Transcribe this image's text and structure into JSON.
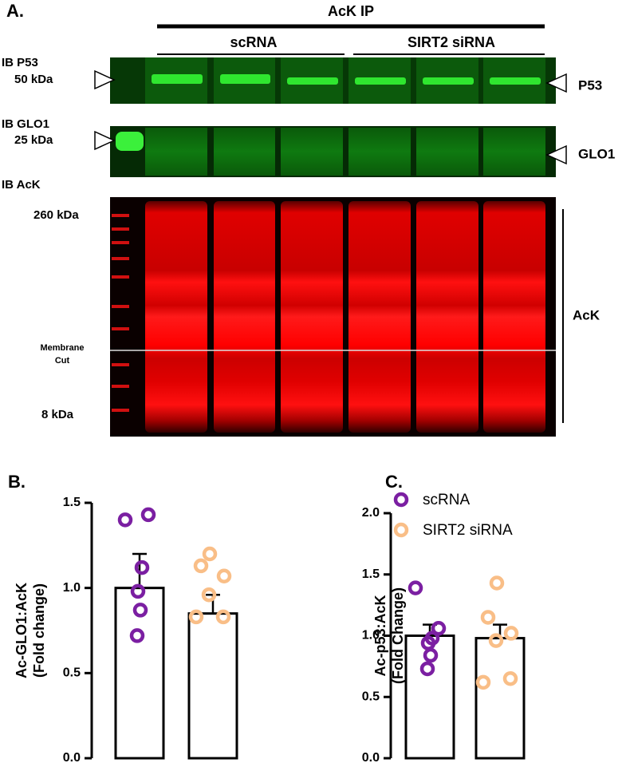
{
  "blot": {
    "panel_label": "A.",
    "ip_label": "AcK IP",
    "group_labels": [
      "scRNA",
      "SIRT2 siRNA"
    ],
    "p53": {
      "ib_label": "IB P53",
      "marker": "50 kDa",
      "band_label": "P53"
    },
    "glo1": {
      "ib_label": "IB GLO1",
      "marker": "25 kDa",
      "band_label": "GLO1"
    },
    "ack": {
      "ib_label": "IB AcK",
      "marker_top": "260 kDa",
      "cut_label": [
        "Membrane",
        "Cut"
      ],
      "marker_bottom": "8 kDa",
      "band_label": "AcK"
    }
  },
  "chart_data": [
    {
      "type": "bar",
      "panel_label": "B.",
      "ylabel": [
        "Ac-GLO1:AcK",
        "(Fold change)"
      ],
      "ylim": [
        0,
        1.5
      ],
      "yticks": [
        {
          "value": 0,
          "label": "0.0"
        },
        0.5,
        {
          "value": 1,
          "label": "1.0"
        },
        1.5
      ],
      "series": [
        {
          "color": "#7b1fa2",
          "values": [
            1.0
          ],
          "errors": [
            0.2
          ],
          "points": [
            1.4,
            1.43,
            1.12,
            0.98,
            0.87,
            0.72
          ]
        },
        {
          "color": "#f9be87",
          "values": [
            0.85
          ],
          "errors": [
            0.11
          ],
          "points": [
            1.2,
            1.13,
            1.07,
            0.96,
            0.83,
            0.83
          ]
        }
      ]
    },
    {
      "type": "bar",
      "panel_label": "C.",
      "ylabel": [
        "Ac-p53:AcK",
        "(Fold Change)"
      ],
      "ylim": [
        0,
        2
      ],
      "yticks": [
        {
          "value": 0,
          "label": "0.0"
        },
        0.5,
        {
          "value": 1,
          "label": "1.0"
        },
        1.5,
        {
          "value": 2,
          "label": "2.0"
        }
      ],
      "series": [
        {
          "name": "scRNA",
          "color": "#7b1fa2",
          "values": [
            1.0
          ],
          "errors": [
            0.09
          ],
          "points": [
            1.39,
            1.06,
            0.98,
            0.94,
            0.84,
            0.73
          ]
        },
        {
          "name": "SIRT2 siRNA",
          "color": "#f9be87",
          "values": [
            0.98
          ],
          "errors": [
            0.11
          ],
          "points": [
            1.43,
            1.15,
            1.02,
            0.96,
            0.62,
            0.65
          ]
        }
      ]
    }
  ]
}
